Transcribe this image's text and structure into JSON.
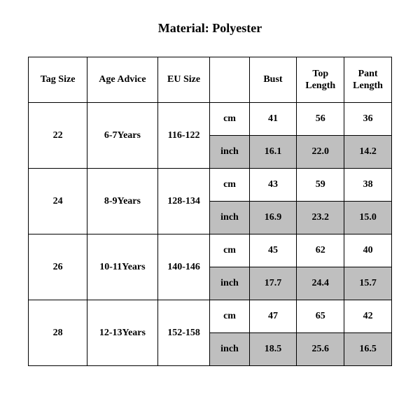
{
  "title": "Material: Polyester",
  "table": {
    "columns": [
      "Tag Size",
      "Age Advice",
      "EU Size",
      "",
      "Bust",
      "Top Length",
      "Pant Length"
    ],
    "unit_labels": {
      "cm": "cm",
      "inch": "inch"
    },
    "header_fontsize": 14,
    "header_fontweight": "bold",
    "cell_fontsize": 14,
    "cell_fontweight": "bold",
    "border_color": "#000000",
    "background_color": "#ffffff",
    "shaded_color": "#bfbfbf",
    "rows": [
      {
        "tag_size": "22",
        "age_advice": "6-7Years",
        "eu_size": "116-122",
        "cm": {
          "bust": "41",
          "top": "56",
          "pant": "36"
        },
        "inch": {
          "bust": "16.1",
          "top": "22.0",
          "pant": "14.2"
        }
      },
      {
        "tag_size": "24",
        "age_advice": "8-9Years",
        "eu_size": "128-134",
        "cm": {
          "bust": "43",
          "top": "59",
          "pant": "38"
        },
        "inch": {
          "bust": "16.9",
          "top": "23.2",
          "pant": "15.0"
        }
      },
      {
        "tag_size": "26",
        "age_advice": "10-11Years",
        "eu_size": "140-146",
        "cm": {
          "bust": "45",
          "top": "62",
          "pant": "40"
        },
        "inch": {
          "bust": "17.7",
          "top": "24.4",
          "pant": "15.7"
        }
      },
      {
        "tag_size": "28",
        "age_advice": "12-13Years",
        "eu_size": "152-158",
        "cm": {
          "bust": "47",
          "top": "65",
          "pant": "42"
        },
        "inch": {
          "bust": "18.5",
          "top": "25.6",
          "pant": "16.5"
        }
      }
    ]
  }
}
